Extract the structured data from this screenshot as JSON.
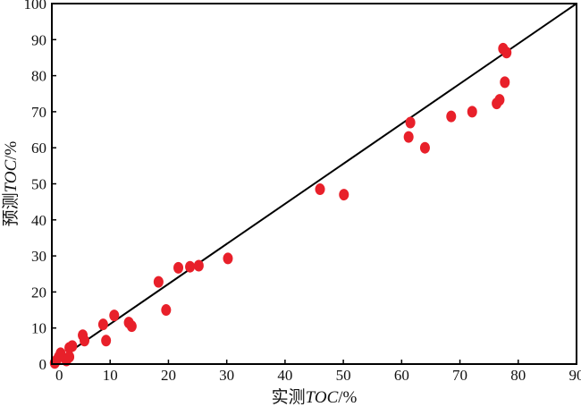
{
  "chart_data": {
    "type": "scatter",
    "xlabel_prefix": "实测",
    "xlabel_var": "TOC",
    "xlabel_suffix": "/%",
    "ylabel_prefix": "预测",
    "ylabel_var": "TOC",
    "ylabel_suffix": "/%",
    "xlim": [
      0,
      90
    ],
    "ylim": [
      0,
      100
    ],
    "xticks": [
      0,
      10,
      20,
      30,
      40,
      50,
      60,
      70,
      80,
      90
    ],
    "yticks": [
      0,
      10,
      20,
      30,
      40,
      50,
      60,
      70,
      80,
      90,
      100
    ],
    "grid": false,
    "point_color": "#e8202a",
    "reference_line": {
      "from": [
        0,
        0
      ],
      "to": [
        90,
        100
      ]
    },
    "points": [
      {
        "x": 0.5,
        "y": 0.3
      },
      {
        "x": 0.8,
        "y": 1.0
      },
      {
        "x": 1.2,
        "y": 2.0
      },
      {
        "x": 1.5,
        "y": 3.0
      },
      {
        "x": 2.5,
        "y": 1.0
      },
      {
        "x": 3.0,
        "y": 2.0
      },
      {
        "x": 3.0,
        "y": 4.5
      },
      {
        "x": 3.5,
        "y": 5.0
      },
      {
        "x": 5.3,
        "y": 8.0
      },
      {
        "x": 5.6,
        "y": 6.5
      },
      {
        "x": 8.8,
        "y": 11.0
      },
      {
        "x": 9.3,
        "y": 6.5
      },
      {
        "x": 10.7,
        "y": 13.5
      },
      {
        "x": 13.2,
        "y": 11.5
      },
      {
        "x": 13.7,
        "y": 10.5
      },
      {
        "x": 18.3,
        "y": 22.8
      },
      {
        "x": 19.6,
        "y": 15.0
      },
      {
        "x": 21.7,
        "y": 26.7
      },
      {
        "x": 23.7,
        "y": 27.0
      },
      {
        "x": 25.2,
        "y": 27.3
      },
      {
        "x": 30.2,
        "y": 29.3
      },
      {
        "x": 46.0,
        "y": 48.5
      },
      {
        "x": 50.1,
        "y": 47.0
      },
      {
        "x": 61.2,
        "y": 63.0
      },
      {
        "x": 61.5,
        "y": 67.0
      },
      {
        "x": 64.0,
        "y": 60.0
      },
      {
        "x": 68.5,
        "y": 68.7
      },
      {
        "x": 72.1,
        "y": 70.0
      },
      {
        "x": 76.3,
        "y": 72.3
      },
      {
        "x": 76.8,
        "y": 73.3
      },
      {
        "x": 77.4,
        "y": 87.5
      },
      {
        "x": 77.7,
        "y": 78.2
      },
      {
        "x": 78.0,
        "y": 86.4
      }
    ]
  }
}
